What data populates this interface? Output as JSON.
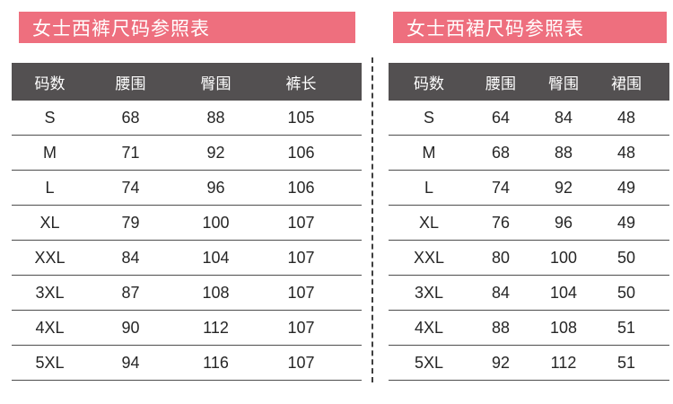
{
  "colors": {
    "banner": "#ee6f7e",
    "header_bg": "#535051",
    "header_text": "#ffffff",
    "cell_text": "#262626",
    "row_line": "#4d4d4d",
    "divider": "#3f3f3f",
    "background": "#ffffff"
  },
  "tables": [
    {
      "title": "女士西裤尺码参照表",
      "columns": [
        "码数",
        "腰围",
        "臀围",
        "裤长"
      ],
      "rows": [
        [
          "S",
          "68",
          "88",
          "105"
        ],
        [
          "M",
          "71",
          "92",
          "106"
        ],
        [
          "L",
          "74",
          "96",
          "106"
        ],
        [
          "XL",
          "79",
          "100",
          "107"
        ],
        [
          "XXL",
          "84",
          "104",
          "107"
        ],
        [
          "3XL",
          "87",
          "108",
          "107"
        ],
        [
          "4XL",
          "90",
          "112",
          "107"
        ],
        [
          "5XL",
          "94",
          "116",
          "107"
        ]
      ]
    },
    {
      "title": "女士西裙尺码参照表",
      "columns": [
        "码数",
        "腰围",
        "臀围",
        "裙围"
      ],
      "rows": [
        [
          "S",
          "64",
          "84",
          "48"
        ],
        [
          "M",
          "68",
          "88",
          "48"
        ],
        [
          "L",
          "74",
          "92",
          "49"
        ],
        [
          "XL",
          "76",
          "96",
          "49"
        ],
        [
          "XXL",
          "80",
          "100",
          "50"
        ],
        [
          "3XL",
          "84",
          "104",
          "50"
        ],
        [
          "4XL",
          "88",
          "108",
          "51"
        ],
        [
          "5XL",
          "92",
          "112",
          "51"
        ]
      ]
    }
  ]
}
